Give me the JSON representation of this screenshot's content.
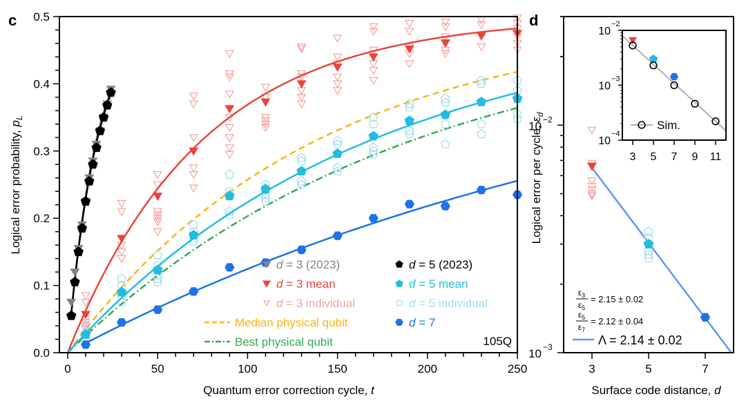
{
  "chart_data": [
    {
      "panel_label": "c",
      "type": "scatter",
      "xlabel": "Quantum error correction cycle, t",
      "ylabel": "Logical error probability, p_L",
      "xlim": [
        -5,
        255
      ],
      "ylim": [
        0.0,
        0.5
      ],
      "xticks": [
        0,
        50,
        100,
        150,
        200,
        250
      ],
      "yticks": [
        0.0,
        0.1,
        0.2,
        0.3,
        0.4,
        0.5
      ],
      "annotation": "105Q",
      "legend_position": "bottom-right",
      "legend": [
        {
          "label": "d = 3 (2023)",
          "marker": "triangle-down-filled",
          "color": "#808487"
        },
        {
          "label": "d = 5 (2023)",
          "marker": "pentagon-filled",
          "color": "#000000"
        },
        {
          "label": "d = 3 mean",
          "marker": "triangle-down-filled",
          "color": "#e8453c"
        },
        {
          "label": "d = 5 mean",
          "marker": "pentagon-filled",
          "color": "#22bcdf"
        },
        {
          "label": "d = 3 individual",
          "marker": "triangle-down-open",
          "color": "#f4a4a0"
        },
        {
          "label": "d = 5 individual",
          "marker": "pentagon-open",
          "color": "#9fdcf0"
        },
        {
          "label": "Median physical qubit",
          "line": "dashed",
          "color": "#f8b513"
        },
        {
          "label": "d = 7",
          "marker": "hexagon-filled",
          "color": "#1a73e8"
        },
        {
          "label": "Best physical qubit",
          "line": "dashdot",
          "color": "#34a853"
        }
      ],
      "series": [
        {
          "name": "d = 3 (2023)",
          "color": "#808487",
          "x": [
            2,
            4,
            6,
            8,
            10,
            12,
            14,
            16,
            18,
            20,
            22,
            24
          ],
          "y": [
            0.075,
            0.12,
            0.155,
            0.19,
            0.225,
            0.26,
            0.285,
            0.31,
            0.33,
            0.35,
            0.37,
            0.392
          ]
        },
        {
          "name": "d = 5 (2023)",
          "color": "#000000",
          "x": [
            2,
            4,
            6,
            8,
            10,
            12,
            14,
            16,
            18,
            20,
            22,
            24
          ],
          "y": [
            0.055,
            0.105,
            0.15,
            0.185,
            0.225,
            0.255,
            0.28,
            0.305,
            0.33,
            0.35,
            0.368,
            0.387
          ]
        },
        {
          "name": "d = 3 mean",
          "color": "#e8453c",
          "x": [
            10,
            30,
            50,
            70,
            90,
            110,
            130,
            150,
            170,
            190,
            210,
            230,
            250
          ],
          "y": [
            0.057,
            0.17,
            0.233,
            0.3,
            0.363,
            0.373,
            0.4,
            0.425,
            0.44,
            0.452,
            0.461,
            0.472,
            0.475
          ]
        },
        {
          "name": "d = 3 individual",
          "color": "#f4a4a0",
          "points": [
            [
              10,
              0.085
            ],
            [
              10,
              0.075
            ],
            [
              10,
              0.05
            ],
            [
              10,
              0.045
            ],
            [
              10,
              0.04
            ],
            [
              10,
              0.035
            ],
            [
              30,
              0.222
            ],
            [
              30,
              0.21
            ],
            [
              30,
              0.16
            ],
            [
              30,
              0.15
            ],
            [
              30,
              0.14
            ],
            [
              50,
              0.265
            ],
            [
              50,
              0.25
            ],
            [
              50,
              0.21
            ],
            [
              50,
              0.205
            ],
            [
              50,
              0.2
            ],
            [
              50,
              0.195
            ],
            [
              50,
              0.18
            ],
            [
              70,
              0.382
            ],
            [
              70,
              0.37
            ],
            [
              70,
              0.32
            ],
            [
              70,
              0.275
            ],
            [
              70,
              0.265
            ],
            [
              70,
              0.245
            ],
            [
              90,
              0.445
            ],
            [
              90,
              0.415
            ],
            [
              90,
              0.41
            ],
            [
              90,
              0.385
            ],
            [
              90,
              0.35
            ],
            [
              90,
              0.335
            ],
            [
              90,
              0.32
            ],
            [
              90,
              0.305
            ],
            [
              90,
              0.295
            ],
            [
              110,
              0.395
            ],
            [
              110,
              0.38
            ],
            [
              110,
              0.35
            ],
            [
              110,
              0.345
            ],
            [
              110,
              0.34
            ],
            [
              110,
              0.335
            ],
            [
              130,
              0.455
            ],
            [
              130,
              0.452
            ],
            [
              130,
              0.415
            ],
            [
              130,
              0.41
            ],
            [
              130,
              0.39
            ],
            [
              130,
              0.38
            ],
            [
              130,
              0.37
            ],
            [
              150,
              0.468
            ],
            [
              150,
              0.44
            ],
            [
              150,
              0.43
            ],
            [
              150,
              0.41
            ],
            [
              150,
              0.4
            ],
            [
              150,
              0.39
            ],
            [
              170,
              0.485
            ],
            [
              170,
              0.478
            ],
            [
              170,
              0.45
            ],
            [
              170,
              0.43
            ],
            [
              170,
              0.42
            ],
            [
              170,
              0.405
            ],
            [
              190,
              0.49
            ],
            [
              190,
              0.478
            ],
            [
              190,
              0.455
            ],
            [
              190,
              0.445
            ],
            [
              190,
              0.43
            ],
            [
              210,
              0.492
            ],
            [
              210,
              0.485
            ],
            [
              210,
              0.47
            ],
            [
              210,
              0.46
            ],
            [
              210,
              0.45
            ],
            [
              210,
              0.445
            ],
            [
              230,
              0.495
            ],
            [
              230,
              0.488
            ],
            [
              230,
              0.47
            ],
            [
              230,
              0.455
            ],
            [
              250,
              0.498
            ],
            [
              250,
              0.49
            ],
            [
              250,
              0.482
            ],
            [
              250,
              0.47
            ],
            [
              250,
              0.46
            ],
            [
              250,
              0.45
            ]
          ]
        },
        {
          "name": "d = 5 mean",
          "color": "#22bcdf",
          "x": [
            10,
            30,
            50,
            70,
            90,
            110,
            130,
            150,
            170,
            190,
            210,
            230,
            250
          ],
          "y": [
            0.027,
            0.09,
            0.123,
            0.175,
            0.233,
            0.243,
            0.27,
            0.296,
            0.322,
            0.345,
            0.354,
            0.373,
            0.378
          ]
        },
        {
          "name": "d = 5 individual",
          "color": "#9fdcf0",
          "points": [
            [
              10,
              0.04
            ],
            [
              10,
              0.03
            ],
            [
              10,
              0.02
            ],
            [
              30,
              0.11
            ],
            [
              30,
              0.1
            ],
            [
              30,
              0.085
            ],
            [
              30,
              0.075
            ],
            [
              50,
              0.145
            ],
            [
              50,
              0.13
            ],
            [
              50,
              0.115
            ],
            [
              50,
              0.11
            ],
            [
              50,
              0.105
            ],
            [
              70,
              0.19
            ],
            [
              70,
              0.18
            ],
            [
              70,
              0.17
            ],
            [
              70,
              0.165
            ],
            [
              90,
              0.265
            ],
            [
              90,
              0.24
            ],
            [
              90,
              0.235
            ],
            [
              90,
              0.21
            ],
            [
              90,
              0.205
            ],
            [
              110,
              0.25
            ],
            [
              110,
              0.245
            ],
            [
              110,
              0.235
            ],
            [
              110,
              0.23
            ],
            [
              110,
              0.225
            ],
            [
              130,
              0.29
            ],
            [
              130,
              0.285
            ],
            [
              130,
              0.255
            ],
            [
              130,
              0.25
            ],
            [
              150,
              0.315
            ],
            [
              150,
              0.31
            ],
            [
              150,
              0.275
            ],
            [
              150,
              0.27
            ],
            [
              170,
              0.35
            ],
            [
              170,
              0.34
            ],
            [
              170,
              0.305
            ],
            [
              170,
              0.3
            ],
            [
              170,
              0.295
            ],
            [
              190,
              0.37
            ],
            [
              190,
              0.365
            ],
            [
              190,
              0.33
            ],
            [
              190,
              0.325
            ],
            [
              210,
              0.378
            ],
            [
              210,
              0.372
            ],
            [
              210,
              0.34
            ],
            [
              210,
              0.31
            ],
            [
              230,
              0.405
            ],
            [
              230,
              0.4
            ],
            [
              230,
              0.34
            ],
            [
              230,
              0.325
            ],
            [
              250,
              0.405
            ],
            [
              250,
              0.39
            ],
            [
              250,
              0.355
            ],
            [
              250,
              0.348
            ]
          ]
        },
        {
          "name": "d = 7",
          "color": "#1a73e8",
          "x": [
            10,
            30,
            50,
            70,
            90,
            110,
            130,
            150,
            170,
            190,
            210,
            230,
            250
          ],
          "y": [
            0.012,
            0.045,
            0.064,
            0.091,
            0.127,
            0.134,
            0.153,
            0.174,
            0.2,
            0.221,
            0.218,
            0.242,
            0.235
          ]
        },
        {
          "name": "Median physical qubit",
          "color": "#f8b513",
          "style": "dashed",
          "model": "0.5*(1-(1-2*0.0036)^t)"
        },
        {
          "name": "Best physical qubit",
          "color": "#34a853",
          "style": "dashdot",
          "model": "0.5*(1-(1-2*0.0026)^t)"
        }
      ],
      "fits": [
        {
          "name": "d = 3 fit",
          "color": "#e8453c",
          "eps": 0.00665,
          "t_range": [
            0,
            250
          ]
        },
        {
          "name": "d = 5 fit",
          "color": "#22bcdf",
          "eps": 0.00296,
          "t_range": [
            0,
            250
          ]
        },
        {
          "name": "d = 7 fit",
          "color": "#1a73e8",
          "eps": 0.00143,
          "t_range": [
            10,
            250
          ]
        },
        {
          "name": "d = 3 (2023) fit",
          "color": "#808487",
          "eps": 0.0305,
          "t_range": [
            2,
            25
          ]
        },
        {
          "name": "d = 5 (2023) fit",
          "color": "#000000",
          "eps": 0.0297,
          "t_range": [
            2,
            25
          ]
        }
      ]
    },
    {
      "panel_label": "d",
      "type": "scatter",
      "xlabel": "Surface code distance, d",
      "ylabel": "Logical error per cycle, ε_d",
      "yscale": "log",
      "xlim": [
        2,
        8
      ],
      "ylim": [
        0.001,
        0.03
      ],
      "xticks": [
        3,
        5,
        7
      ],
      "yticks_major": [
        "10^-3",
        "10^-2"
      ],
      "series": [
        {
          "name": "d = 3 mean",
          "color": "#e8453c",
          "x": [
            3
          ],
          "y": [
            0.0066
          ]
        },
        {
          "name": "d = 3 individual",
          "color": "#f4a4a0",
          "x": [
            3,
            3,
            3,
            3,
            3,
            3,
            3
          ],
          "y": [
            0.0095,
            0.0068,
            0.0057,
            0.0054,
            0.0052,
            0.005,
            0.0049
          ]
        },
        {
          "name": "d = 5 mean",
          "color": "#22bcdf",
          "x": [
            5
          ],
          "y": [
            0.003
          ]
        },
        {
          "name": "d = 5 individual",
          "color": "#9fdcf0",
          "x": [
            5,
            5,
            5,
            5,
            5
          ],
          "y": [
            0.0034,
            0.0032,
            0.0028,
            0.0027,
            0.0026
          ]
        },
        {
          "name": "d = 7",
          "color": "#1a73e8",
          "x": [
            7
          ],
          "y": [
            0.00143
          ]
        }
      ],
      "fit": {
        "label": "Λ = 2.14 ± 0.02",
        "color": "#5e97f6",
        "eps3": 0.0065,
        "lambda": 2.14
      },
      "ratios": [
        {
          "num": "ε3",
          "den": "ε5",
          "value": "= 2.15 ± 0.02"
        },
        {
          "num": "ε5",
          "den": "ε7",
          "value": "= 2.12 ± 0.04"
        }
      ],
      "inset": {
        "yscale": "log",
        "ylim": [
          0.0001,
          0.01
        ],
        "xlim": [
          2,
          12
        ],
        "xticks": [
          3,
          5,
          7,
          9,
          11
        ],
        "yticks_major": [
          "10^-4",
          "10^-3",
          "10^-2"
        ],
        "legend": "Sim.",
        "sim": {
          "x": [
            3,
            5,
            7,
            9,
            11
          ],
          "y": [
            0.0053,
            0.0023,
            0.001,
            0.00046,
            0.00022
          ],
          "color": "#000000"
        },
        "experiment": [
          {
            "x": 3,
            "y": 0.0066,
            "color": "#e8453c",
            "marker": "triangle-down-filled"
          },
          {
            "x": 5,
            "y": 0.003,
            "color": "#22bcdf",
            "marker": "pentagon-filled"
          },
          {
            "x": 7,
            "y": 0.00143,
            "color": "#1a73e8",
            "marker": "hexagon-filled"
          }
        ],
        "line_color": "#b0b0b0"
      }
    }
  ],
  "text": {
    "panel_c": "c",
    "panel_d": "d",
    "c_xlabel": "Quantum error correction cycle, ",
    "c_xlabel_var": "t",
    "c_ylabel": "Logical error probability, ",
    "c_ylabel_var": "p",
    "c_ylabel_sub": "L",
    "d_xlabel": "Surface code distance, ",
    "d_xlabel_var": "d",
    "d_ylabel": "Logical error per cycle, ",
    "d_ylabel_var": "ε",
    "d_ylabel_sub": "d",
    "annotation_105q": "105Q",
    "lambda_label": "Λ = 2.14 ± 0.02",
    "sim_label": "Sim."
  }
}
